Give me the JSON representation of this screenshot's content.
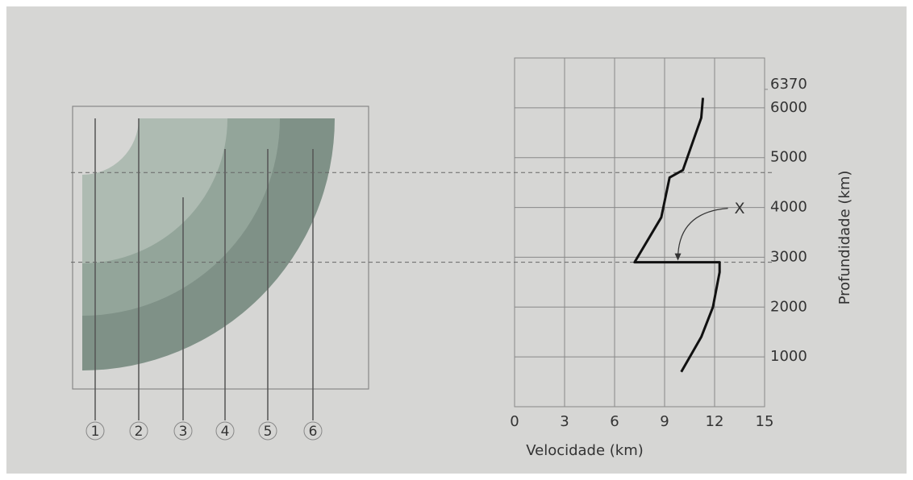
{
  "diagram": {
    "seismographs": [
      "1",
      "2",
      "3",
      "4",
      "5",
      "6"
    ]
  },
  "chart_data": {
    "type": "line",
    "xlabel": "Velocidade (km)",
    "ylabel": "Profundidade (km)",
    "xlim": [
      0,
      15
    ],
    "xticks": [
      0,
      3,
      6,
      9,
      12,
      15
    ],
    "ylim": [
      0,
      7000
    ],
    "yticks": [
      1000,
      2000,
      3000,
      4000,
      5000,
      6000
    ],
    "surface": 6370,
    "grid": true,
    "boundaries": [
      4700,
      2900
    ],
    "annotation": {
      "text": "X",
      "x": 9.8,
      "y": 2900
    },
    "series": [
      {
        "color": "#111111",
        "x": [
          10.0,
          11.2,
          11.9,
          12.3,
          12.3,
          7.2,
          8.8,
          9.3,
          10.1,
          11.2,
          11.3
        ],
        "values": [
          700,
          1400,
          2000,
          2700,
          2900,
          2900,
          3800,
          4600,
          4750,
          5800,
          6200
        ]
      }
    ]
  }
}
